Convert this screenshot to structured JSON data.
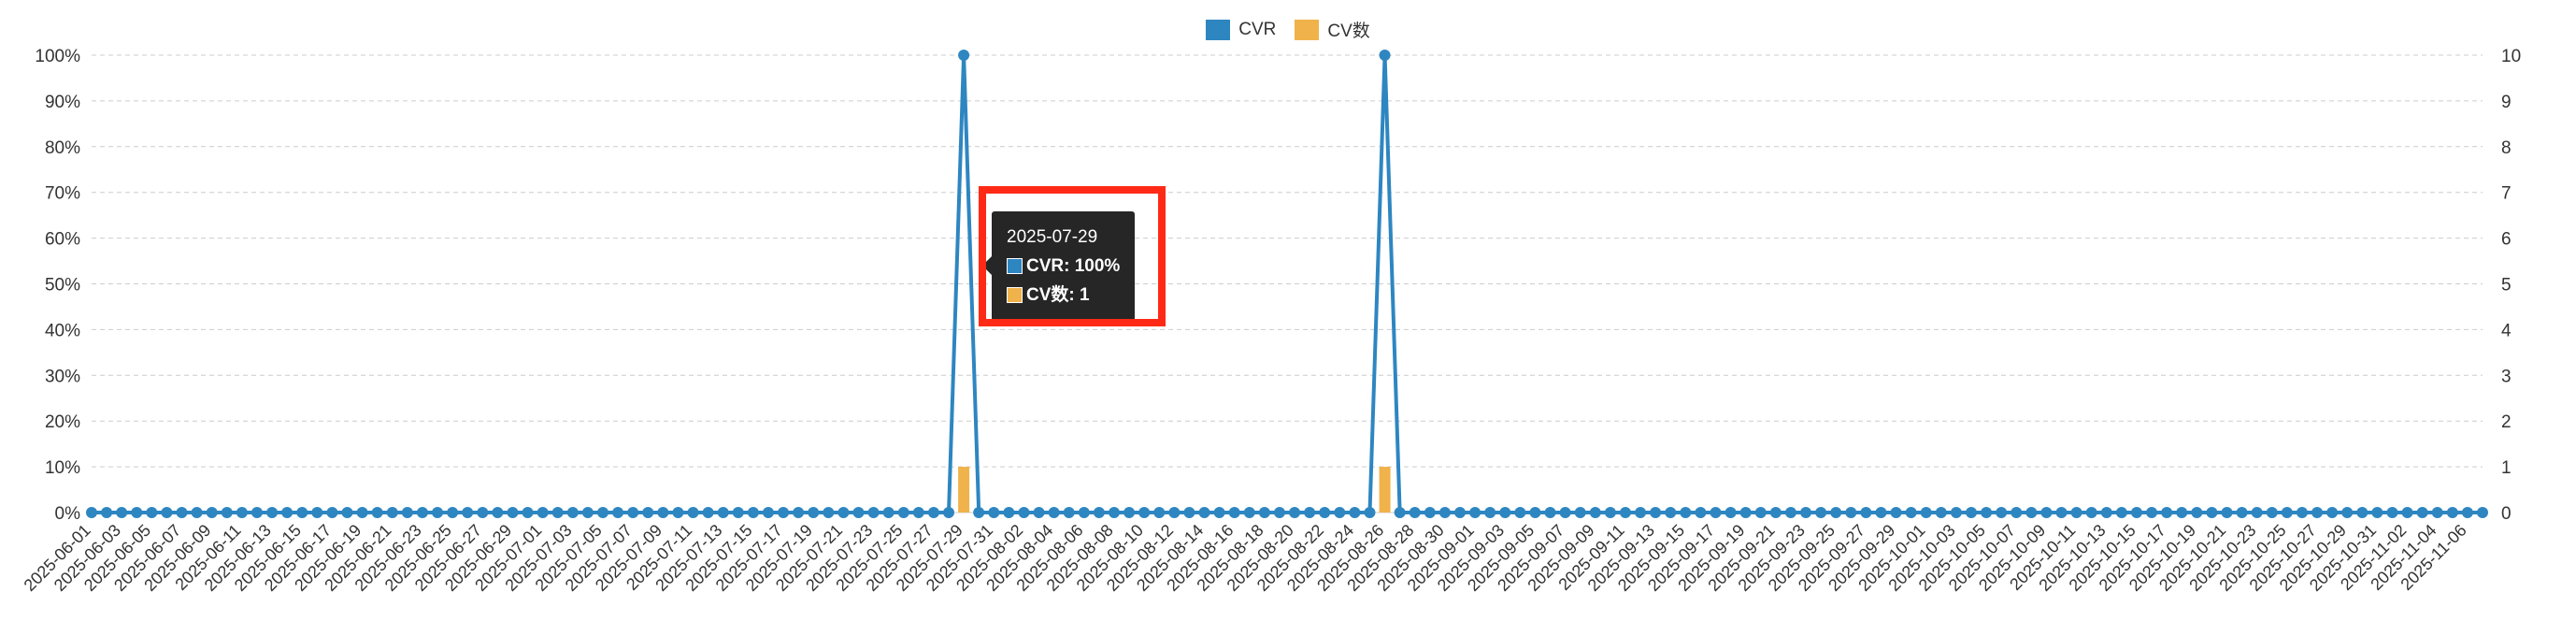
{
  "colors": {
    "cvr": "#2e86c1",
    "cv": "#f0b24a",
    "grid": "#cccccc",
    "tooltip_bg": "#262626",
    "highlight": "#ff2a16"
  },
  "legend": [
    {
      "label": "CVR",
      "color": "#2e86c1"
    },
    {
      "label": "CV数",
      "color": "#f0b24a"
    }
  ],
  "tooltip": {
    "date": "2025-07-29",
    "cvr_text": "CVR: 100%",
    "cv_text": "CV数: 1"
  },
  "chart_data": {
    "type": "line",
    "x_start": "2025-06-01",
    "x_end": "2025-11-07",
    "x_tick_step_days": 2,
    "left_axis": {
      "ticks": [
        "0%",
        "10%",
        "20%",
        "30%",
        "40%",
        "50%",
        "60%",
        "70%",
        "80%",
        "90%",
        "100%"
      ],
      "ylim": [
        0,
        100
      ]
    },
    "right_axis": {
      "ticks": [
        "0",
        "1",
        "2",
        "3",
        "4",
        "5",
        "6",
        "7",
        "8",
        "9",
        "10"
      ],
      "ylim": [
        0,
        10
      ]
    },
    "grid": true,
    "legend_position": "top-center",
    "series": [
      {
        "name": "CVR",
        "type": "line",
        "axis": "left",
        "default": 0,
        "values": [
          {
            "x": "2025-07-29",
            "y": 100
          },
          {
            "x": "2025-08-26",
            "y": 100
          }
        ]
      },
      {
        "name": "CV数",
        "type": "bar",
        "axis": "right",
        "default": 0,
        "values": [
          {
            "x": "2025-07-29",
            "y": 1
          },
          {
            "x": "2025-08-26",
            "y": 1
          }
        ]
      }
    ]
  }
}
